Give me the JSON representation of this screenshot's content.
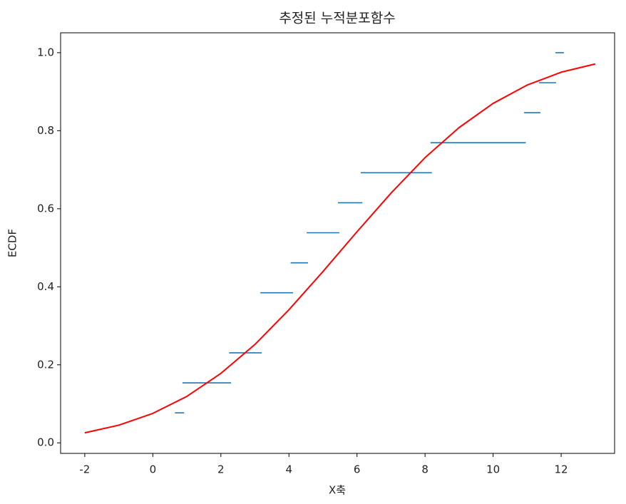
{
  "chart_data": {
    "type": "ecdf",
    "title": "추정된 누적분포함수",
    "x_label": "X축",
    "y_label": "ECDF",
    "xlim": [
      -2.71,
      13.57
    ],
    "ylim": [
      -0.027,
      1.051
    ],
    "xticks": [
      -2,
      0,
      2,
      4,
      6,
      8,
      10,
      12
    ],
    "yticks": [
      {
        "value": 0,
        "label": "0.0"
      },
      0.2,
      0.4,
      0.6,
      0.8,
      {
        "value": 1,
        "label": "1.0"
      }
    ],
    "segments": {
      "color": "#1f77b4",
      "values": [
        0.0769,
        0.1538,
        0.2308,
        0.3846,
        0.4615,
        0.5385,
        0.6154,
        0.6923,
        0.7692,
        0.8462,
        0.9231,
        1.0
      ],
      "xmin": [
        0.65,
        0.87,
        2.24,
        3.16,
        4.05,
        4.52,
        5.44,
        6.11,
        8.16,
        10.91,
        11.35,
        11.83
      ],
      "xmax": [
        0.92,
        2.3,
        3.2,
        4.12,
        4.56,
        5.48,
        6.16,
        8.2,
        10.96,
        11.39,
        11.85,
        12.08
      ]
    },
    "curve": {
      "color": "#ff0000",
      "x": [
        -2,
        -1,
        0,
        1,
        2,
        3,
        4,
        5,
        6,
        7,
        8,
        9,
        10,
        11,
        12,
        13
      ],
      "values": [
        0.0257,
        0.0453,
        0.0755,
        0.119,
        0.178,
        0.252,
        0.341,
        0.439,
        0.541,
        0.64,
        0.731,
        0.808,
        0.87,
        0.917,
        0.95,
        0.971
      ]
    }
  }
}
